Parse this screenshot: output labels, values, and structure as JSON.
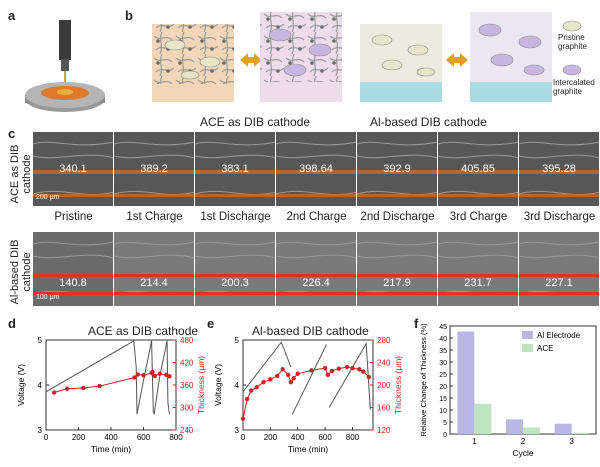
{
  "panels": {
    "a": {
      "label": "a"
    },
    "b": {
      "label": "b",
      "legend": {
        "pristine": "Pristine graphite",
        "intercalated": "Intercalated graphite"
      }
    },
    "c": {
      "label": "c",
      "titles": {
        "ace": "ACE as DIB cathode",
        "al": "Al-based DIB cathode"
      },
      "row_labels": {
        "ace": "ACE as DIB cathode",
        "al": "Al-based DIB cathode"
      },
      "stages": [
        "Pristine",
        "1st Charge",
        "1st Discharge",
        "2nd Charge",
        "2nd Discharge",
        "3rd Charge",
        "3rd Discharge"
      ],
      "ace_values": [
        "340.1",
        "389.2",
        "383.1",
        "398.64",
        "392.9",
        "405.85",
        "395.28"
      ],
      "al_values": [
        "140.8",
        "214.4",
        "200.3",
        "226.4",
        "217.9",
        "231.7",
        "227.1"
      ],
      "scale_ace": "200 μm",
      "scale_al": "100 μm"
    },
    "d": {
      "label": "d"
    },
    "e": {
      "label": "e"
    },
    "f": {
      "label": "f"
    }
  },
  "chart_data": [
    {
      "id": "d",
      "type": "line",
      "title": "ACE as DIB cathode",
      "xlabel": "Time (min)",
      "ylabel": "Voltage (V)",
      "y2label": "Thickness (μm)",
      "xlim": [
        0,
        800
      ],
      "xticks": [
        0,
        200,
        400,
        600,
        800
      ],
      "ylim": [
        3,
        5
      ],
      "yticks": [
        3,
        4,
        5
      ],
      "y2lim": [
        240,
        480
      ],
      "y2ticks": [
        240,
        300,
        360,
        420,
        480
      ],
      "series": [
        {
          "axis": "left",
          "color": "#555555",
          "x": [
            0,
            540,
            555,
            560,
            600,
            650,
            660,
            665,
            700,
            745,
            750,
            760
          ],
          "y": [
            3.85,
            4.98,
            4.4,
            3.35,
            4.1,
            4.98,
            3.4,
            3.35,
            4.2,
            4.98,
            3.6,
            3.35
          ]
        },
        {
          "axis": "right",
          "color": "#d42020",
          "x": [
            50,
            130,
            230,
            330,
            545,
            565,
            600,
            650,
            655,
            670,
            700,
            740,
            760
          ],
          "y": [
            340,
            350,
            352,
            357,
            380,
            388,
            386,
            392,
            395,
            384,
            390,
            387,
            383
          ]
        }
      ]
    },
    {
      "id": "e",
      "type": "line",
      "title": "Al-based DIB cathode",
      "xlabel": "Time (min)",
      "ylabel": "Voltage (V)",
      "y2label": "Thickness (μm)",
      "xlim": [
        0,
        950
      ],
      "xticks": [
        0,
        200,
        400,
        600,
        800
      ],
      "ylim": [
        3,
        5
      ],
      "yticks": [
        3,
        4,
        5
      ],
      "y2lim": [
        120,
        280
      ],
      "y2ticks": [
        120,
        160,
        200,
        240,
        280
      ],
      "series": [
        {
          "axis": "left",
          "color": "#555555",
          "x": [
            0,
            280,
            350,
            360,
            610,
            630,
            900,
            930
          ],
          "y": [
            3.85,
            4.95,
            4.4,
            3.35,
            4.9,
            3.5,
            4.92,
            3.45
          ],
          "breaks": [
            3,
            5
          ]
        },
        {
          "axis": "right",
          "color": "#d42020",
          "x": [
            0,
            30,
            60,
            100,
            150,
            200,
            250,
            290,
            330,
            350,
            370,
            400,
            500,
            600,
            620,
            650,
            700,
            760,
            800,
            850,
            880,
            920
          ],
          "y": [
            140,
            175,
            190,
            196,
            205,
            210,
            216,
            228,
            218,
            205,
            212,
            220,
            226,
            230,
            218,
            225,
            229,
            232,
            230,
            228,
            224,
            214
          ]
        }
      ]
    },
    {
      "id": "f",
      "type": "bar",
      "xlabel": "Cycle",
      "ylabel": "Relative Change of Thickness (%)",
      "categories": [
        "1",
        "2",
        "3"
      ],
      "ylim": [
        0,
        45
      ],
      "yticks": [
        0,
        5,
        10,
        15,
        20,
        25,
        30,
        35,
        40,
        45
      ],
      "legend": "top-right",
      "series": [
        {
          "name": "Al Electrode",
          "color": "#b8b6e2",
          "values": [
            42.7,
            6.1,
            4.3
          ]
        },
        {
          "name": "ACE",
          "color": "#bfe4bf",
          "values": [
            12.6,
            2.7,
            0.5
          ]
        }
      ]
    }
  ]
}
